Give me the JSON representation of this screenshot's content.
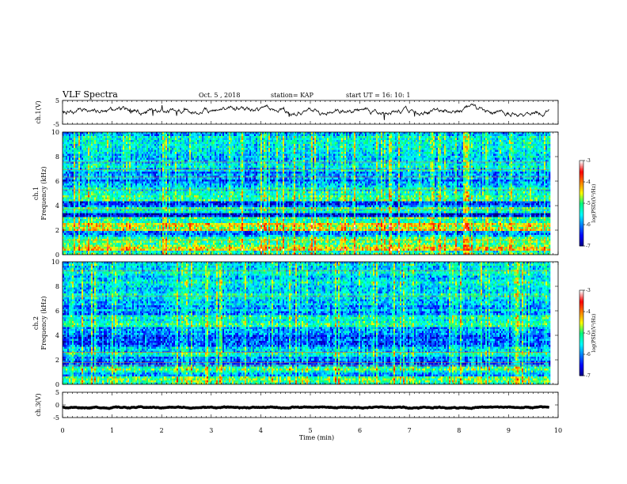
{
  "header": {
    "title": "VLF Spectra",
    "date": "Oct. 5 , 2018",
    "station": "station= KAP",
    "start": "start  UT =   16: 10: 1"
  },
  "colors": {
    "colormap": [
      "#000080",
      "#0000ff",
      "#0080ff",
      "#00ffff",
      "#00ff80",
      "#ffff00",
      "#ff8000",
      "#ff0000",
      "#ffffff"
    ],
    "trace": "#000000"
  },
  "chart_data": [
    {
      "type": "line",
      "panel": "ch1-waveform",
      "ylabel": "ch.1(V)",
      "ylim": [
        -5,
        5
      ],
      "yticks": [
        "5",
        "-5"
      ],
      "xlim": [
        0,
        10
      ],
      "x_end": 9.82,
      "y_mean": 0.5,
      "y_amplitude": 1.6
    },
    {
      "type": "heatmap",
      "panel": "ch1-spectrogram",
      "ylabel": "ch.1",
      "ylabel2": "Frequency (kHz)",
      "ylim": [
        0,
        10
      ],
      "yticks": [
        "0",
        "2",
        "4",
        "6",
        "8",
        "10"
      ],
      "xlim": [
        0,
        10
      ],
      "x_end": 9.82,
      "colorbar": {
        "label": "log(PSD)(V²/Hz)",
        "range": [
          -7,
          -3
        ],
        "ticks": [
          "-3",
          "-4",
          "-5",
          "-6",
          "-7"
        ]
      },
      "bands_khz": [
        {
          "from": 0,
          "to": 0.3,
          "level": -5.2
        },
        {
          "from": 0.3,
          "to": 0.6,
          "level": -4.3
        },
        {
          "from": 0.6,
          "to": 1.5,
          "level": -5.0
        },
        {
          "from": 1.5,
          "to": 2.0,
          "level": -5.9
        },
        {
          "from": 2.0,
          "to": 2.6,
          "level": -4.6
        },
        {
          "from": 2.6,
          "to": 3.1,
          "level": -5.3
        },
        {
          "from": 3.1,
          "to": 3.4,
          "level": -6.6
        },
        {
          "from": 3.4,
          "to": 3.9,
          "level": -5.4
        },
        {
          "from": 3.9,
          "to": 4.3,
          "level": -6.3
        },
        {
          "from": 4.3,
          "to": 5.0,
          "level": -5.2
        },
        {
          "from": 5.0,
          "to": 5.6,
          "level": -5.5
        },
        {
          "from": 5.6,
          "to": 6.7,
          "level": -6.0
        },
        {
          "from": 6.7,
          "to": 10.0,
          "level": -5.6
        }
      ]
    },
    {
      "type": "heatmap",
      "panel": "ch2-spectrogram",
      "ylabel": "ch.2",
      "ylabel2": "Frequency (kHz)",
      "ylim": [
        0,
        10
      ],
      "yticks": [
        "0",
        "2",
        "4",
        "6",
        "8",
        "10"
      ],
      "xlim": [
        0,
        10
      ],
      "x_end": 9.82,
      "colorbar": {
        "label": "log(PSD)(V²/Hz)",
        "range": [
          -7,
          -3
        ],
        "ticks": [
          "-3",
          "-4",
          "-5",
          "-6",
          "-7"
        ]
      },
      "bands_khz": [
        {
          "from": 0,
          "to": 0.6,
          "level": -5.0
        },
        {
          "from": 0.6,
          "to": 1.0,
          "level": -5.8
        },
        {
          "from": 1.0,
          "to": 1.5,
          "level": -5.1
        },
        {
          "from": 1.5,
          "to": 2.2,
          "level": -6.0
        },
        {
          "from": 2.2,
          "to": 3.0,
          "level": -5.5
        },
        {
          "from": 3.0,
          "to": 4.0,
          "level": -6.2
        },
        {
          "from": 4.0,
          "to": 4.7,
          "level": -5.7
        },
        {
          "from": 4.7,
          "to": 5.6,
          "level": -5.2
        },
        {
          "from": 5.6,
          "to": 6.5,
          "level": -5.8
        },
        {
          "from": 6.5,
          "to": 10.0,
          "level": -5.5
        }
      ]
    },
    {
      "type": "line",
      "panel": "ch3-waveform",
      "ylabel": "ch.3(V)",
      "ylim": [
        -5,
        5
      ],
      "yticks": [
        "5",
        "0",
        "-5"
      ],
      "xlim": [
        0,
        10
      ],
      "x_end": 9.82,
      "y_mean": -1.0,
      "y_amplitude": 0.3
    }
  ],
  "xaxis": {
    "label": "Time (min)",
    "ticks": [
      "0",
      "1",
      "2",
      "3",
      "4",
      "5",
      "6",
      "7",
      "8",
      "9",
      "10"
    ]
  }
}
